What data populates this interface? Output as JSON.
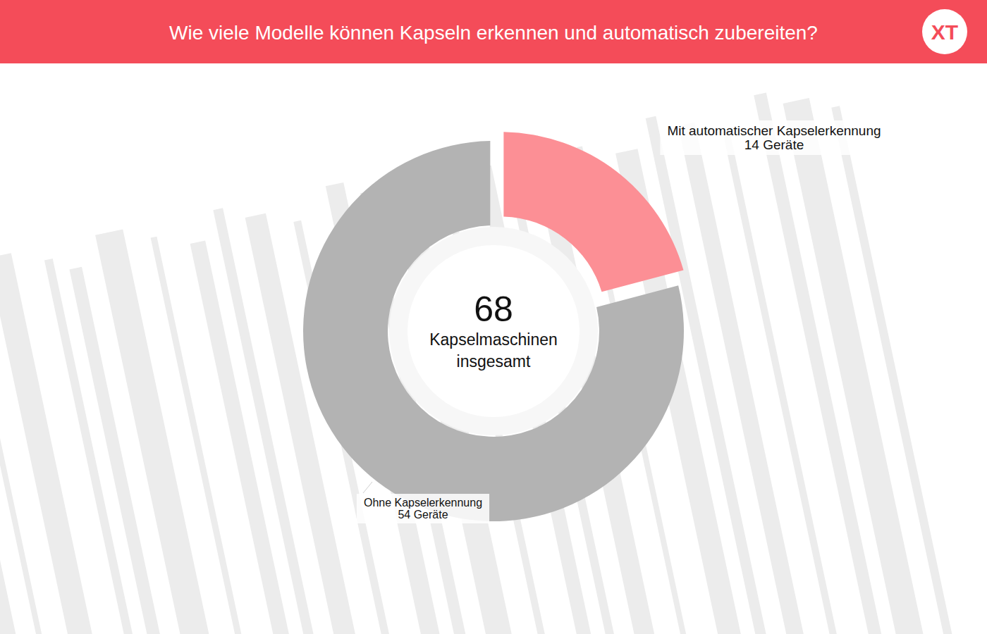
{
  "logo": "XT",
  "chart_data": {
    "type": "donut",
    "title": "Wie viele Modelle können Kapseln erkennen und automatisch zubereiten?",
    "categories": [
      "Mit automatischer Kapselerkennung",
      "Ohne Kapselerkennung"
    ],
    "values": [
      14,
      54
    ],
    "value_labels": [
      "14 Geräte",
      "54 Geräte"
    ],
    "colors": [
      "#fc8f95",
      "#b3b3b3"
    ],
    "data_labels": true,
    "total": 68,
    "total_label": "Kapselmaschinen insgesamt"
  }
}
